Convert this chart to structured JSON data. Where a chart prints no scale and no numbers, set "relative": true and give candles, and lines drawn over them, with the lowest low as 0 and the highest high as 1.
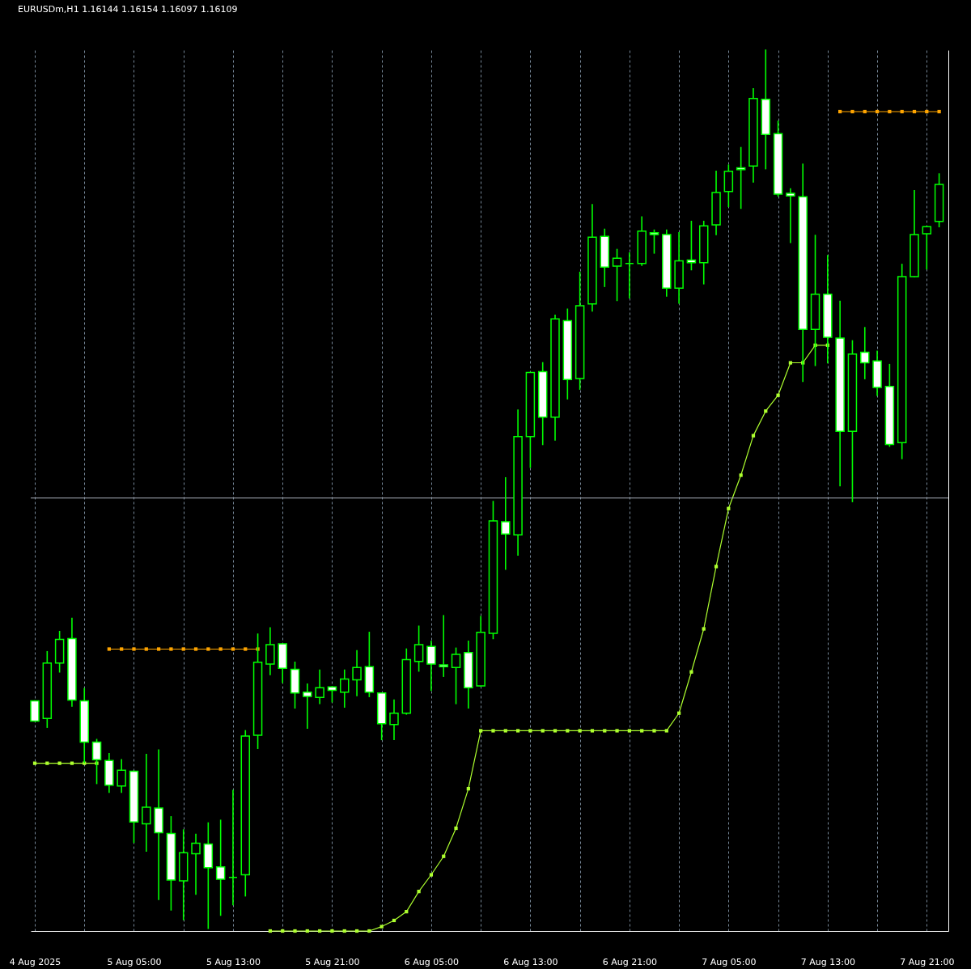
{
  "chart_data": {
    "type": "candlestick",
    "title": "EURUSDm,H1 1.16144 1.16154 1.16097 1.16109",
    "relative": true,
    "x": [
      "2025-08-04T21:00",
      "2025-08-04T22:00",
      "2025-08-04T23:00",
      "2025-08-05T00:00",
      "2025-08-05T01:00",
      "2025-08-05T02:00",
      "2025-08-05T03:00",
      "2025-08-05T04:00",
      "2025-08-05T05:00",
      "2025-08-05T06:00",
      "2025-08-05T07:00",
      "2025-08-05T08:00",
      "2025-08-05T09:00",
      "2025-08-05T10:00",
      "2025-08-05T11:00",
      "2025-08-05T12:00",
      "2025-08-05T13:00",
      "2025-08-05T14:00",
      "2025-08-05T15:00",
      "2025-08-05T16:00",
      "2025-08-05T17:00",
      "2025-08-05T18:00",
      "2025-08-05T19:00",
      "2025-08-05T20:00",
      "2025-08-05T21:00",
      "2025-08-05T22:00",
      "2025-08-05T23:00",
      "2025-08-06T00:00",
      "2025-08-06T01:00",
      "2025-08-06T02:00",
      "2025-08-06T03:00",
      "2025-08-06T04:00",
      "2025-08-06T05:00",
      "2025-08-06T06:00",
      "2025-08-06T07:00",
      "2025-08-06T08:00",
      "2025-08-06T09:00",
      "2025-08-06T10:00",
      "2025-08-06T11:00",
      "2025-08-06T12:00",
      "2025-08-06T13:00",
      "2025-08-06T14:00",
      "2025-08-06T15:00",
      "2025-08-06T16:00",
      "2025-08-06T17:00",
      "2025-08-06T18:00",
      "2025-08-06T19:00",
      "2025-08-06T20:00",
      "2025-08-06T21:00",
      "2025-08-06T22:00",
      "2025-08-06T23:00",
      "2025-08-07T00:00",
      "2025-08-07T01:00",
      "2025-08-07T02:00",
      "2025-08-07T03:00",
      "2025-08-07T04:00",
      "2025-08-07T05:00",
      "2025-08-07T06:00",
      "2025-08-07T07:00",
      "2025-08-07T08:00",
      "2025-08-07T09:00",
      "2025-08-07T10:00",
      "2025-08-07T11:00",
      "2025-08-07T12:00",
      "2025-08-07T13:00",
      "2025-08-07T14:00",
      "2025-08-07T15:00",
      "2025-08-07T16:00",
      "2025-08-07T17:00",
      "2025-08-07T18:00",
      "2025-08-07T19:00",
      "2025-08-07T20:00",
      "2025-08-07T21:00",
      "2025-08-07T22:00"
    ],
    "ohlc": [
      [
        0.259,
        0.259,
        0.236,
        0.236
      ],
      [
        0.239,
        0.315,
        0.229,
        0.302
      ],
      [
        0.302,
        0.338,
        0.292,
        0.329
      ],
      [
        0.33,
        0.353,
        0.253,
        0.26
      ],
      [
        0.259,
        0.273,
        0.189,
        0.212
      ],
      [
        0.212,
        0.215,
        0.165,
        0.192
      ],
      [
        0.191,
        0.199,
        0.155,
        0.163
      ],
      [
        0.162,
        0.192,
        0.155,
        0.18
      ],
      [
        0.179,
        0.179,
        0.098,
        0.121
      ],
      [
        0.119,
        0.198,
        0.088,
        0.138
      ],
      [
        0.137,
        0.203,
        0.033,
        0.109
      ],
      [
        0.108,
        0.127,
        0.021,
        0.055
      ],
      [
        0.054,
        0.112,
        0.01,
        0.086
      ],
      [
        0.085,
        0.107,
        0.039,
        0.097
      ],
      [
        0.096,
        0.12,
        0,
        0.069
      ],
      [
        0.07,
        0.123,
        0.015,
        0.056
      ],
      [
        0.058,
        0.157,
        0.027,
        0.058
      ],
      [
        0.061,
        0.225,
        0.037,
        0.219
      ],
      [
        0.22,
        0.335,
        0.205,
        0.303
      ],
      [
        0.301,
        0.342,
        0.289,
        0.323
      ],
      [
        0.324,
        0.324,
        0.28,
        0.296
      ],
      [
        0.295,
        0.303,
        0.251,
        0.268
      ],
      [
        0.269,
        0.278,
        0.228,
        0.264
      ],
      [
        0.263,
        0.294,
        0.256,
        0.274
      ],
      [
        0.275,
        0.275,
        0.258,
        0.271
      ],
      [
        0.269,
        0.294,
        0.252,
        0.284
      ],
      [
        0.283,
        0.316,
        0.265,
        0.297
      ],
      [
        0.298,
        0.337,
        0.264,
        0.269
      ],
      [
        0.268,
        0.268,
        0.215,
        0.233
      ],
      [
        0.232,
        0.26,
        0.215,
        0.245
      ],
      [
        0.245,
        0.318,
        0.244,
        0.306
      ],
      [
        0.304,
        0.344,
        0.293,
        0.323
      ],
      [
        0.321,
        0.327,
        0.271,
        0.301
      ],
      [
        0.3,
        0.356,
        0.287,
        0.298
      ],
      [
        0.297,
        0.319,
        0.256,
        0.312
      ],
      [
        0.314,
        0.327,
        0.251,
        0.274
      ],
      [
        0.276,
        0.355,
        0.276,
        0.337
      ],
      [
        0.336,
        0.486,
        0.33,
        0.464
      ],
      [
        0.463,
        0.513,
        0.409,
        0.449
      ],
      [
        0.448,
        0.59,
        0.425,
        0.56
      ],
      [
        0.56,
        0.633,
        0.525,
        0.633
      ],
      [
        0.634,
        0.644,
        0.551,
        0.582
      ],
      [
        0.582,
        0.698,
        0.556,
        0.694
      ],
      [
        0.692,
        0.705,
        0.603,
        0.625
      ],
      [
        0.626,
        0.747,
        0.614,
        0.709
      ],
      [
        0.711,
        0.824,
        0.703,
        0.787
      ],
      [
        0.788,
        0.796,
        0.731,
        0.753
      ],
      [
        0.754,
        0.773,
        0.715,
        0.763
      ],
      [
        0.757,
        0.769,
        0.718,
        0.757
      ],
      [
        0.757,
        0.81,
        0.755,
        0.794
      ],
      [
        0.792,
        0.795,
        0.769,
        0.79
      ],
      [
        0.79,
        0.795,
        0.72,
        0.729
      ],
      [
        0.729,
        0.792,
        0.712,
        0.76
      ],
      [
        0.761,
        0.805,
        0.75,
        0.758
      ],
      [
        0.758,
        0.805,
        0.734,
        0.8
      ],
      [
        0.801,
        0.862,
        0.79,
        0.838
      ],
      [
        0.839,
        0.869,
        0.822,
        0.862
      ],
      [
        0.866,
        0.889,
        0.82,
        0.864
      ],
      [
        0.868,
        0.956,
        0.85,
        0.945
      ],
      [
        0.944,
        1,
        0.865,
        0.904
      ],
      [
        0.905,
        0.919,
        0.834,
        0.836
      ],
      [
        0.837,
        0.842,
        0.781,
        0.834
      ],
      [
        0.833,
        0.87,
        0.623,
        0.682
      ],
      [
        0.682,
        0.789,
        0.641,
        0.722
      ],
      [
        0.722,
        0.766,
        0.644,
        0.673
      ],
      [
        0.672,
        0.714,
        0.504,
        0.566
      ],
      [
        0.566,
        0.669,
        0.486,
        0.654
      ],
      [
        0.656,
        0.684,
        0.626,
        0.644
      ],
      [
        0.646,
        0.657,
        0.607,
        0.616
      ],
      [
        0.617,
        0.642,
        0.549,
        0.551
      ],
      [
        0.553,
        0.756,
        0.535,
        0.742
      ],
      [
        0.742,
        0.84,
        0.742,
        0.79
      ],
      [
        0.791,
        0.799,
        0.751,
        0.799
      ],
      [
        0.805,
        0.859,
        0.799,
        0.847
      ]
    ],
    "color": "#00ff00",
    "colors": [
      "#ffffff",
      "#000000",
      "#000000",
      "#ffffff",
      "#ffffff",
      "#ffffff",
      "#ffffff",
      "#000000",
      "#ffffff",
      "#000000",
      "#ffffff",
      "#ffffff",
      "#000000",
      "#000000",
      "#ffffff",
      "#ffffff",
      "#00ff00",
      "#000000",
      "#000000",
      "#000000",
      "#ffffff",
      "#ffffff",
      "#ffffff",
      "#000000",
      "#ffffff",
      "#000000",
      "#000000",
      "#ffffff",
      "#ffffff",
      "#000000",
      "#000000",
      "#000000",
      "#ffffff",
      "#ffffff",
      "#000000",
      "#ffffff",
      "#000000",
      "#000000",
      "#ffffff",
      "#000000",
      "#000000",
      "#ffffff",
      "#000000",
      "#ffffff",
      "#000000",
      "#000000",
      "#ffffff",
      "#000000",
      "#00ff00",
      "#000000",
      "#ffffff",
      "#ffffff",
      "#000000",
      "#ffffff",
      "#000000",
      "#000000",
      "#000000",
      "#ffffff",
      "#000000",
      "#ffffff",
      "#ffffff",
      "#ffffff",
      "#ffffff",
      "#000000",
      "#ffffff",
      "#ffffff",
      "#000000",
      "#ffffff",
      "#ffffff",
      "#ffffff",
      "#000000",
      "#000000",
      "#000000",
      "#000000"
    ],
    "series": [
      {
        "type": "line",
        "color": "#adff2f",
        "values": [
          0.188,
          0.188,
          0.188,
          0.188,
          0.188,
          0.188,
          null,
          null,
          null,
          null,
          null,
          null,
          null,
          null,
          null,
          null,
          null,
          null,
          null,
          -0.003,
          -0.003,
          -0.003,
          -0.003,
          -0.003,
          -0.003,
          -0.003,
          -0.003,
          -0.003,
          0.002,
          0.009,
          0.019,
          0.042,
          0.061,
          0.082,
          0.114,
          0.159,
          0.225,
          0.225,
          0.225,
          0.225,
          0.225,
          0.225,
          0.225,
          0.225,
          0.225,
          0.225,
          0.225,
          0.225,
          0.225,
          0.225,
          0.225,
          0.225,
          0.245,
          0.292,
          0.341,
          0.412,
          0.478,
          0.516,
          0.561,
          0.589,
          0.607,
          0.644,
          0.644,
          0.664,
          0.664,
          null,
          null,
          null,
          null,
          null,
          null,
          null,
          null,
          null
        ]
      },
      {
        "type": "line",
        "color": "#ffa500",
        "values": [
          null,
          null,
          null,
          null,
          null,
          null,
          0.318,
          0.318,
          0.318,
          0.318,
          0.318,
          0.318,
          0.318,
          0.318,
          0.318,
          0.318,
          0.318,
          0.318,
          0.318,
          null,
          null,
          null,
          null,
          null,
          null,
          null,
          null,
          null,
          null,
          null,
          null,
          null,
          null,
          null,
          null,
          null,
          null,
          null,
          null,
          null,
          null,
          null,
          null,
          null,
          null,
          null,
          null,
          null,
          null,
          null,
          null,
          null,
          null,
          null,
          null,
          null,
          null,
          null,
          null,
          null,
          null,
          null,
          null,
          null,
          null,
          0.93,
          0.93,
          0.93,
          0.93,
          0.93,
          0.93,
          0.93,
          0.93,
          0.93
        ]
      }
    ],
    "marker": "square",
    "xlim": [
      "2025-08-04T21:00",
      "2025-08-07T22:25"
    ],
    "xticks": [
      {
        "value": "2025-08-04T21:00",
        "label": "4 Aug 2025"
      },
      {
        "value": "2025-08-05T01:00",
        "label": null
      },
      {
        "value": "2025-08-05T05:00",
        "label": "5 Aug 05:00"
      },
      {
        "value": "2025-08-05T09:00",
        "label": null
      },
      {
        "value": "2025-08-05T13:00",
        "label": "5 Aug 13:00"
      },
      {
        "value": "2025-08-05T17:00",
        "label": null
      },
      {
        "value": "2025-08-05T21:00",
        "label": "5 Aug 21:00"
      },
      {
        "value": "2025-08-06T01:00",
        "label": null
      },
      {
        "value": "2025-08-06T05:00",
        "label": "6 Aug 05:00"
      },
      {
        "value": "2025-08-06T09:00",
        "label": null
      },
      {
        "value": "2025-08-06T13:00",
        "label": "6 Aug 13:00"
      },
      {
        "value": "2025-08-06T17:00",
        "label": null
      },
      {
        "value": "2025-08-06T21:00",
        "label": "6 Aug 21:00"
      },
      {
        "value": "2025-08-07T01:00",
        "label": null
      },
      {
        "value": "2025-08-07T05:00",
        "label": "7 Aug 05:00"
      },
      {
        "value": "2025-08-07T09:00",
        "label": null
      },
      {
        "value": "2025-08-07T13:00",
        "label": "7 Aug 13:00"
      },
      {
        "value": "2025-08-07T17:00",
        "label": null
      },
      {
        "value": "2025-08-07T21:00",
        "label": "7 Aug 21:00"
      }
    ],
    "grid": "x",
    "ref_lines": [
      {
        "axis": "y",
        "value": 0.49,
        "color": "#a9b0bb"
      }
    ]
  }
}
